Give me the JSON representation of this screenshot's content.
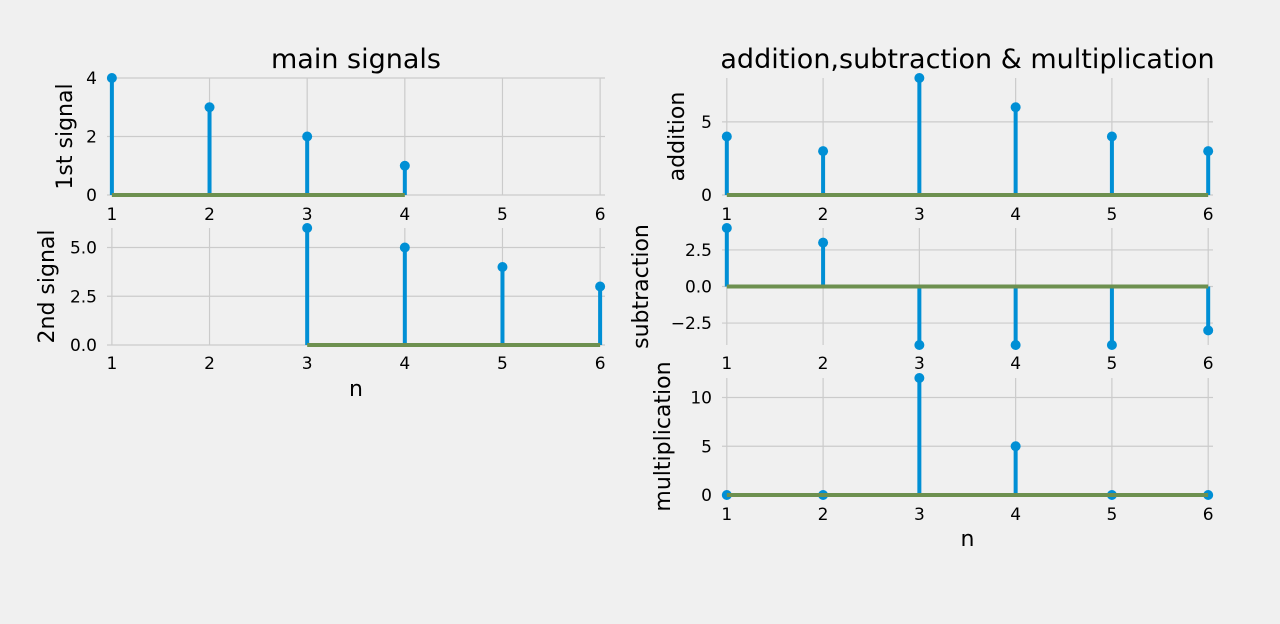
{
  "chart_data": [
    {
      "type": "stem",
      "panel": "main-1st",
      "title": "main signals",
      "xlabel": "",
      "ylabel": "1st signal",
      "x": [
        1,
        2,
        3,
        4
      ],
      "values": [
        4,
        3,
        2,
        1
      ],
      "xlim": [
        0.95,
        6.05
      ],
      "ylim": [
        0,
        4
      ],
      "xticks": [
        "1",
        "2",
        "3",
        "4",
        "5",
        "6"
      ],
      "yticks": [
        "0",
        "2",
        "4"
      ],
      "grid": true
    },
    {
      "type": "stem",
      "panel": "main-2nd",
      "title": "",
      "xlabel": "n",
      "ylabel": "2nd signal",
      "x": [
        3,
        4,
        5,
        6
      ],
      "values": [
        6,
        5,
        4,
        3
      ],
      "xlim": [
        0.95,
        6.05
      ],
      "ylim": [
        0,
        6
      ],
      "xticks": [
        "1",
        "2",
        "3",
        "4",
        "5",
        "6"
      ],
      "yticks": [
        "0.0",
        "2.5",
        "5.0"
      ],
      "grid": true
    },
    {
      "type": "stem",
      "panel": "addition",
      "title": "addition,subtraction & multiplication",
      "xlabel": "",
      "ylabel": "addition",
      "x": [
        1,
        2,
        3,
        4,
        5,
        6
      ],
      "values": [
        4,
        3,
        8,
        6,
        4,
        3
      ],
      "xlim": [
        0.95,
        6.05
      ],
      "ylim": [
        0,
        8
      ],
      "xticks": [
        "1",
        "2",
        "3",
        "4",
        "5",
        "6"
      ],
      "yticks": [
        "0",
        "5"
      ],
      "grid": true
    },
    {
      "type": "stem",
      "panel": "subtraction",
      "title": "",
      "xlabel": "",
      "ylabel": "subtraction",
      "x": [
        1,
        2,
        3,
        4,
        5,
        6
      ],
      "values": [
        4,
        3,
        -4,
        -4,
        -4,
        -3
      ],
      "xlim": [
        0.95,
        6.05
      ],
      "ylim": [
        -4,
        4
      ],
      "xticks": [
        "1",
        "2",
        "3",
        "4",
        "5",
        "6"
      ],
      "yticks": [
        "−2.5",
        "0.0",
        "2.5"
      ],
      "grid": true
    },
    {
      "type": "stem",
      "panel": "multiplication",
      "title": "",
      "xlabel": "n",
      "ylabel": "multiplication",
      "x": [
        1,
        2,
        3,
        4,
        5,
        6
      ],
      "values": [
        0,
        0,
        12,
        5,
        0,
        0
      ],
      "xlim": [
        0.95,
        6.05
      ],
      "ylim": [
        0,
        12
      ],
      "xticks": [
        "1",
        "2",
        "3",
        "4",
        "5",
        "6"
      ],
      "yticks": [
        "0",
        "5",
        "10"
      ],
      "grid": true
    }
  ],
  "colors": {
    "stem": "#008fd5",
    "baseline": "#6d904f",
    "grid": "#cbcbcb",
    "background": "#f0f0f0"
  }
}
